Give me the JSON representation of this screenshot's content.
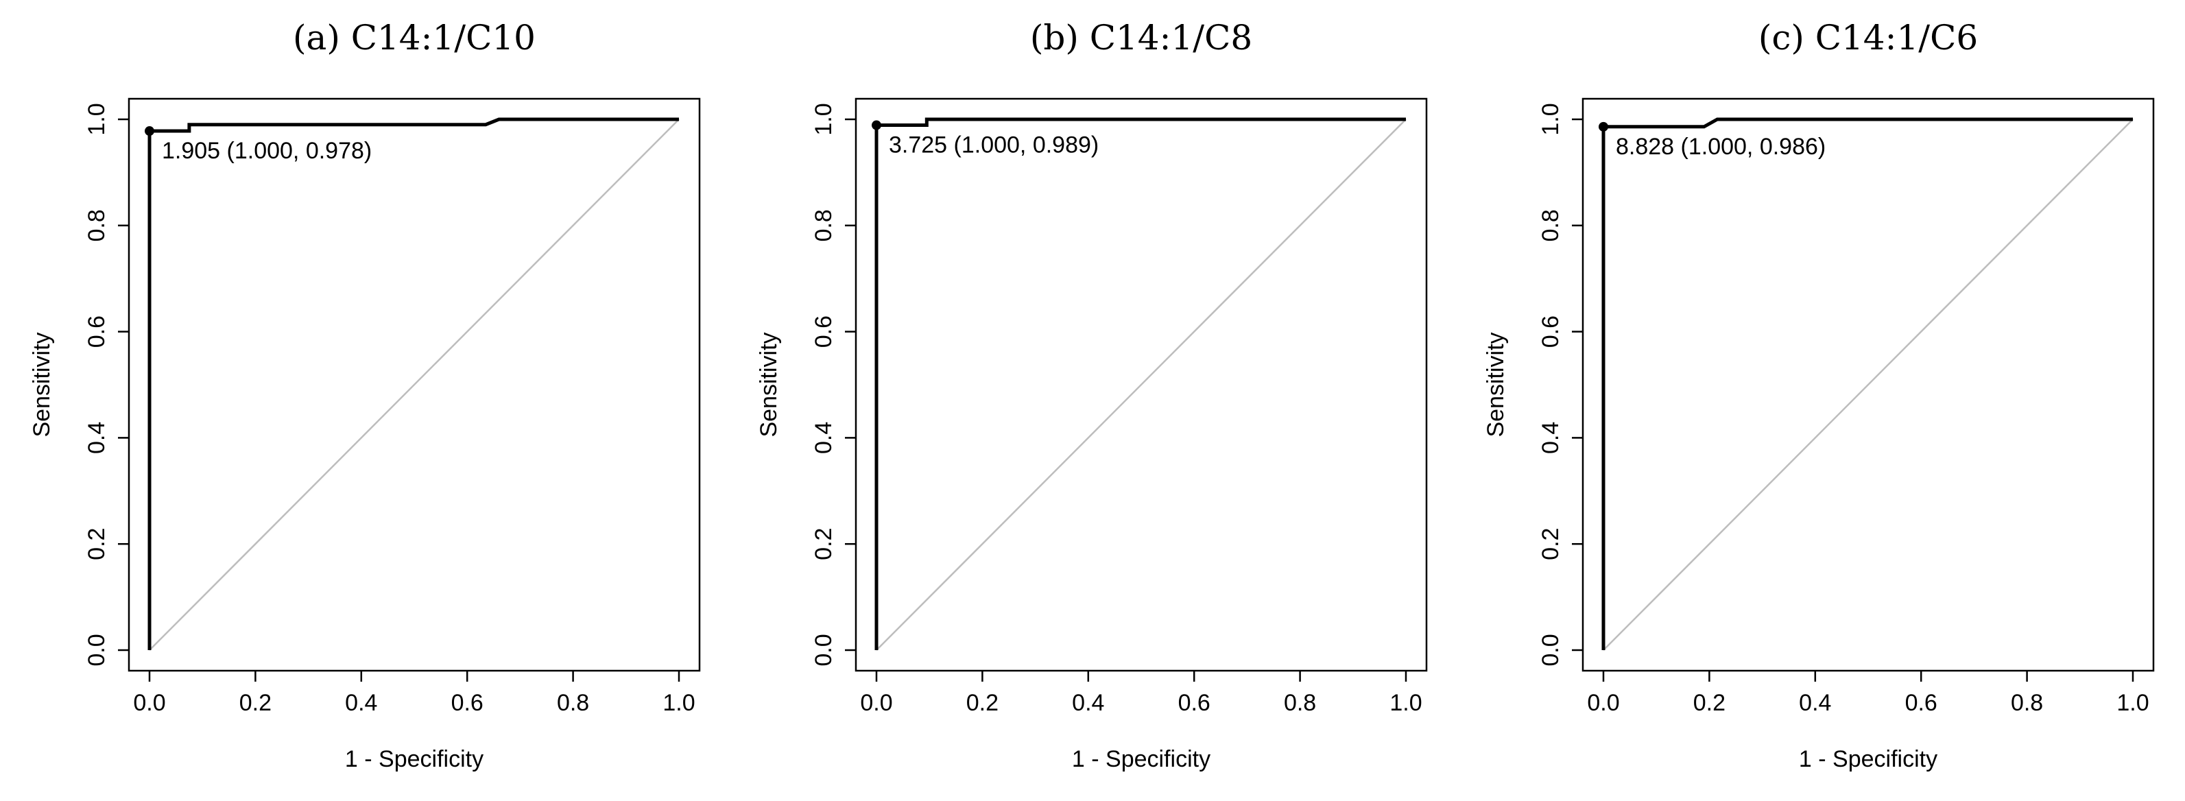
{
  "chart_data": [
    {
      "type": "line",
      "title": "(a) C14:1/C10",
      "xlabel": "1 - Specificity",
      "ylabel": "Sensitivity",
      "xlim": [
        0,
        1
      ],
      "ylim": [
        0,
        1
      ],
      "xticks": [
        "0.0",
        "0.2",
        "0.4",
        "0.6",
        "0.8",
        "1.0"
      ],
      "yticks": [
        "0.0",
        "0.2",
        "0.4",
        "0.6",
        "0.8",
        "1.0"
      ],
      "series": [
        {
          "x": [
            0.0,
            0.0,
            0.075,
            0.075,
            0.635,
            0.66,
            1.0
          ],
          "y": [
            0.0,
            0.978,
            0.978,
            0.99,
            0.99,
            1.0,
            1.0
          ]
        }
      ],
      "reference_line": {
        "x": [
          0,
          1
        ],
        "y": [
          0,
          1
        ],
        "color": "#bdbdbd"
      },
      "threshold_point": {
        "x": 0.0,
        "y": 0.978
      },
      "annotation": "1.905 (1.000, 0.978)"
    },
    {
      "type": "line",
      "title": "(b) C14:1/C8",
      "xlabel": "1 - Specificity",
      "ylabel": "Sensitivity",
      "xlim": [
        0,
        1
      ],
      "ylim": [
        0,
        1
      ],
      "xticks": [
        "0.0",
        "0.2",
        "0.4",
        "0.6",
        "0.8",
        "1.0"
      ],
      "yticks": [
        "0.0",
        "0.2",
        "0.4",
        "0.6",
        "0.8",
        "1.0"
      ],
      "series": [
        {
          "x": [
            0.0,
            0.0,
            0.095,
            0.095,
            1.0
          ],
          "y": [
            0.0,
            0.989,
            0.989,
            1.0,
            1.0
          ]
        }
      ],
      "reference_line": {
        "x": [
          0,
          1
        ],
        "y": [
          0,
          1
        ],
        "color": "#bdbdbd"
      },
      "threshold_point": {
        "x": 0.0,
        "y": 0.989
      },
      "annotation": "3.725 (1.000, 0.989)"
    },
    {
      "type": "line",
      "title": "(c) C14:1/C6",
      "xlabel": "1 - Specificity",
      "ylabel": "Sensitivity",
      "xlim": [
        0,
        1
      ],
      "ylim": [
        0,
        1
      ],
      "xticks": [
        "0.0",
        "0.2",
        "0.4",
        "0.6",
        "0.8",
        "1.0"
      ],
      "yticks": [
        "0.0",
        "0.2",
        "0.4",
        "0.6",
        "0.8",
        "1.0"
      ],
      "series": [
        {
          "x": [
            0.0,
            0.0,
            0.19,
            0.215,
            1.0
          ],
          "y": [
            0.0,
            0.986,
            0.986,
            1.0,
            1.0
          ]
        }
      ],
      "reference_line": {
        "x": [
          0,
          1
        ],
        "y": [
          0,
          1
        ],
        "color": "#bdbdbd"
      },
      "threshold_point": {
        "x": 0.0,
        "y": 0.986
      },
      "annotation": "8.828 (1.000, 0.986)"
    }
  ]
}
